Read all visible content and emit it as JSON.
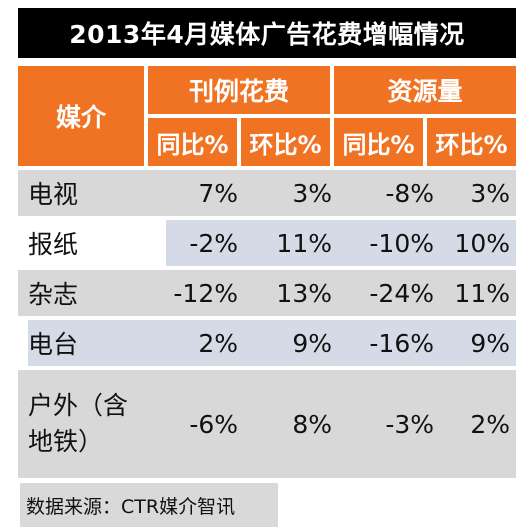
{
  "title": "2013年4月媒体广告花费增幅情况",
  "header": {
    "media": "媒介",
    "group1": "刊例花费",
    "group2": "资源量",
    "sub": [
      "同比%",
      "环比%",
      "同比%",
      "环比%"
    ]
  },
  "rows": [
    {
      "name": "电视",
      "values": [
        "7%",
        "3%",
        "-8%",
        "3%"
      ]
    },
    {
      "name": "报纸",
      "values": [
        "-2%",
        "11%",
        "-10%",
        "10%"
      ]
    },
    {
      "name": "杂志",
      "values": [
        "-12%",
        "13%",
        "-24%",
        "11%"
      ]
    },
    {
      "name": "电台",
      "values": [
        "2%",
        "9%",
        "-16%",
        "9%"
      ]
    },
    {
      "name_line1": "户外（含",
      "name_line2": "地铁）",
      "values": [
        "-6%",
        "8%",
        "-3%",
        "2%"
      ]
    }
  ],
  "source": "数据来源：CTR媒介智讯",
  "colors": {
    "header": "#f07324",
    "title_bg": "#000000",
    "band_gray": "#d8d8d8",
    "band_blue": "#d5dbe6"
  }
}
